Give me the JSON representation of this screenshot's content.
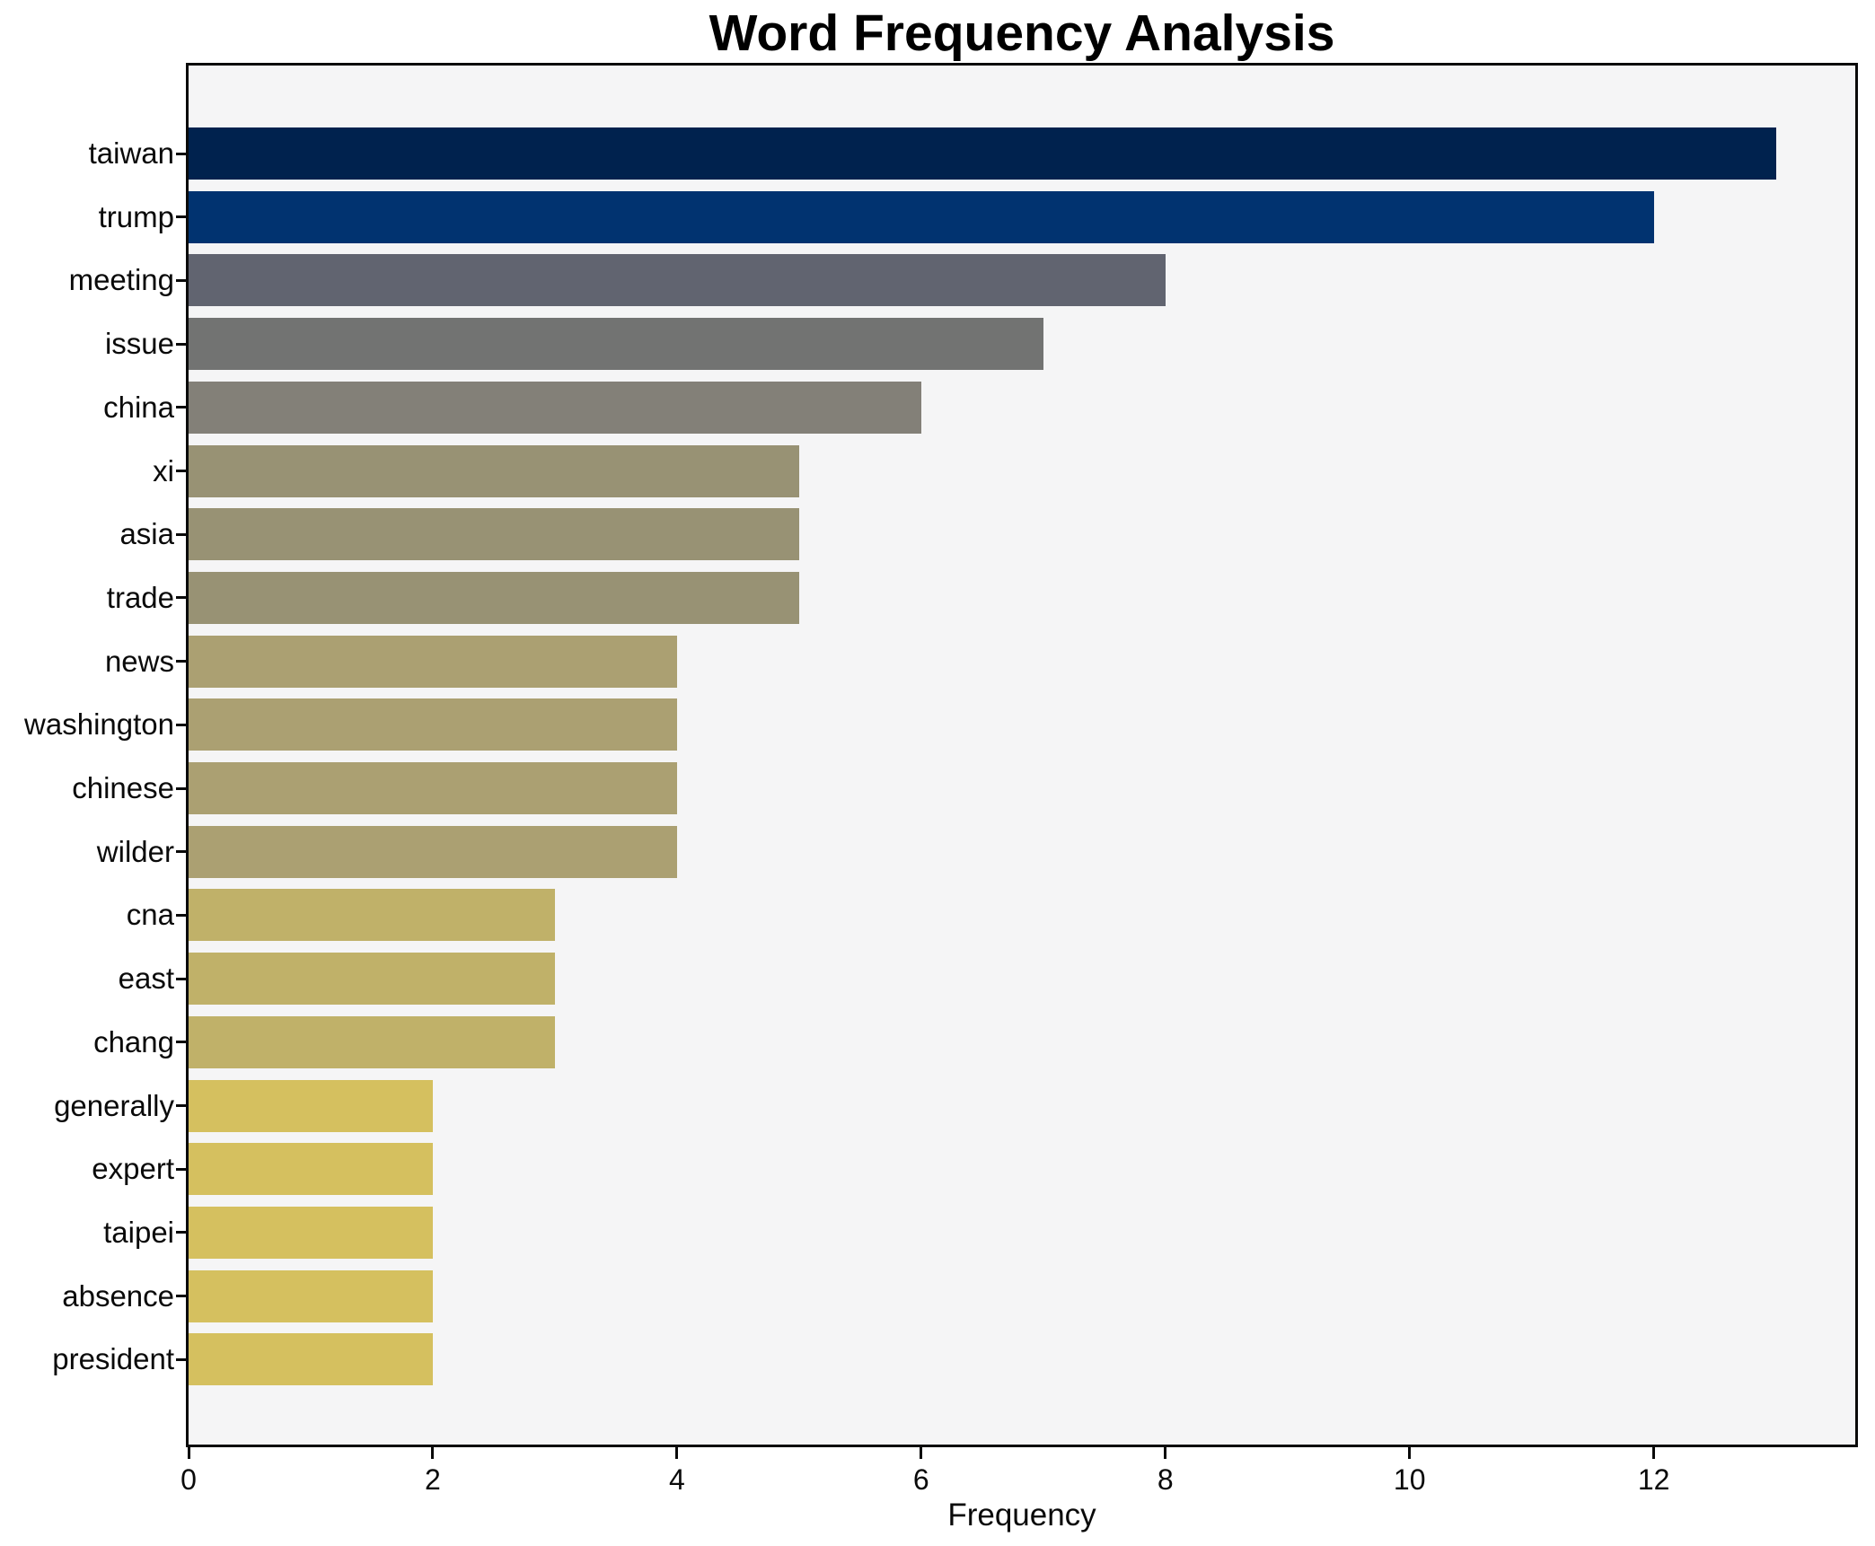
{
  "title": "Word Frequency Analysis",
  "chart_data": {
    "type": "bar",
    "orientation": "horizontal",
    "title": "Word Frequency Analysis",
    "xlabel": "Frequency",
    "ylabel": "",
    "categories": [
      "taiwan",
      "trump",
      "meeting",
      "issue",
      "china",
      "xi",
      "asia",
      "trade",
      "news",
      "washington",
      "chinese",
      "wilder",
      "cna",
      "east",
      "chang",
      "generally",
      "expert",
      "taipei",
      "absence",
      "president"
    ],
    "values": [
      13,
      12,
      8,
      7,
      6,
      5,
      5,
      5,
      4,
      4,
      4,
      4,
      3,
      3,
      3,
      2,
      2,
      2,
      2,
      2
    ],
    "bar_colors": [
      "#00224e",
      "#013370",
      "#616470",
      "#727372",
      "#838078",
      "#989274",
      "#989274",
      "#989274",
      "#aba072",
      "#aba072",
      "#aba072",
      "#aba072",
      "#c0b169",
      "#c0b169",
      "#c0b169",
      "#d5c05f",
      "#d5c05f",
      "#d5c05f",
      "#d5c05f",
      "#d5c05f"
    ],
    "xlim": [
      0,
      13.65
    ],
    "x_ticks": [
      0,
      2,
      4,
      6,
      8,
      10,
      12
    ],
    "grid": false,
    "legend": null,
    "plot_background": "#f5f5f6",
    "figure_background": "#ffffff",
    "spine_color": "#0a0a0a",
    "colormap_note": "cividis gradient, dark navy for highest frequency to gold for lowest"
  }
}
